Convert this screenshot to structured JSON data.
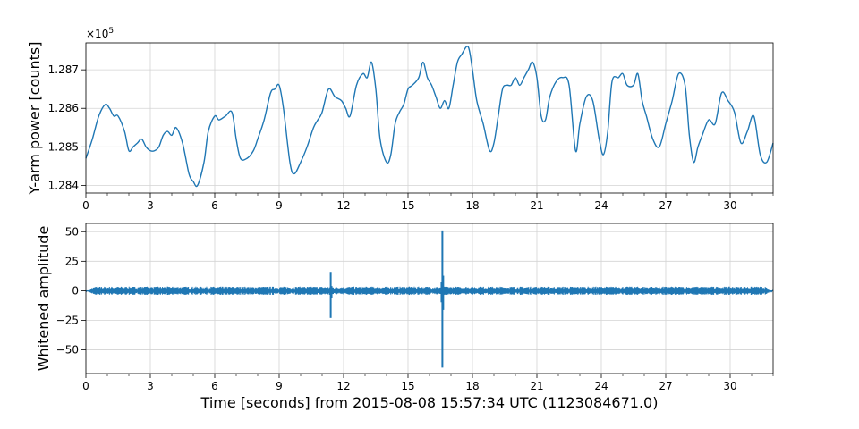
{
  "chart_data": [
    {
      "type": "line",
      "xlabel": "",
      "ylabel": "Y-arm power [counts]",
      "offset_text": "×10",
      "offset_exp": "5",
      "xlim": [
        0,
        32
      ],
      "ylim": [
        1.2838,
        1.2877
      ],
      "grid": true,
      "x_ticks": [
        0,
        3,
        6,
        9,
        12,
        15,
        18,
        21,
        24,
        27,
        30
      ],
      "x_tick_labels": [
        "0",
        "3",
        "6",
        "9",
        "12",
        "15",
        "18",
        "21",
        "24",
        "27",
        "30"
      ],
      "y_ticks": [
        1.284,
        1.285,
        1.286,
        1.287
      ],
      "y_tick_labels": [
        "1.284",
        "1.285",
        "1.286",
        "1.287"
      ],
      "color": "#1f77b4",
      "series": [
        {
          "x": [
            0,
            0.3,
            0.6,
            0.9,
            1.1,
            1.3,
            1.5,
            1.8,
            2.0,
            2.2,
            2.4,
            2.6,
            2.8,
            3.0,
            3.2,
            3.4,
            3.6,
            3.8,
            4.0,
            4.2,
            4.5,
            4.8,
            5.0,
            5.2,
            5.5,
            5.7,
            6.0,
            6.2,
            6.5,
            6.8,
            7.0,
            7.2,
            7.5,
            7.8,
            8.0,
            8.3,
            8.6,
            8.8,
            9.0,
            9.2,
            9.5,
            9.7,
            10.0,
            10.3,
            10.6,
            10.8,
            11.0,
            11.3,
            11.6,
            11.9,
            12.1,
            12.3,
            12.6,
            12.9,
            13.1,
            13.3,
            13.5,
            13.7,
            14.0,
            14.2,
            14.4,
            14.6,
            14.8,
            15.0,
            15.2,
            15.5,
            15.7,
            15.9,
            16.1,
            16.3,
            16.5,
            16.7,
            16.9,
            17.1,
            17.3,
            17.5,
            17.8,
            18.0,
            18.2,
            18.5,
            18.8,
            19.0,
            19.2,
            19.4,
            19.6,
            19.8,
            20.0,
            20.2,
            20.4,
            20.6,
            20.8,
            21.0,
            21.2,
            21.4,
            21.6,
            21.9,
            22.2,
            22.5,
            22.8,
            23.0,
            23.3,
            23.6,
            23.9,
            24.1,
            24.3,
            24.5,
            24.8,
            25.0,
            25.2,
            25.5,
            25.7,
            25.9,
            26.1,
            26.4,
            26.7,
            27.0,
            27.3,
            27.6,
            27.9,
            28.1,
            28.3,
            28.5,
            28.7,
            29.0,
            29.3,
            29.6,
            29.9,
            30.2,
            30.5,
            30.8,
            31.1,
            31.4,
            31.7,
            32.0
          ],
          "values": [
            1.2847,
            1.2852,
            1.2858,
            1.2861,
            1.286,
            1.2858,
            1.2858,
            1.2854,
            1.2849,
            1.285,
            1.2851,
            1.2852,
            1.285,
            1.2849,
            1.2849,
            1.285,
            1.2853,
            1.2854,
            1.2853,
            1.2855,
            1.2851,
            1.2843,
            1.2841,
            1.284,
            1.2846,
            1.2854,
            1.2858,
            1.2857,
            1.2858,
            1.2859,
            1.2852,
            1.2847,
            1.2847,
            1.2849,
            1.2852,
            1.2857,
            1.2864,
            1.2865,
            1.2866,
            1.286,
            1.2846,
            1.2843,
            1.2846,
            1.285,
            1.2855,
            1.2857,
            1.2859,
            1.2865,
            1.2863,
            1.2862,
            1.286,
            1.2858,
            1.2866,
            1.2869,
            1.2868,
            1.2872,
            1.2865,
            1.2852,
            1.2846,
            1.2848,
            1.2856,
            1.2859,
            1.2861,
            1.2865,
            1.2866,
            1.2868,
            1.2872,
            1.2868,
            1.2866,
            1.2863,
            1.286,
            1.2862,
            1.286,
            1.2866,
            1.2872,
            1.2874,
            1.2876,
            1.287,
            1.2862,
            1.2856,
            1.2849,
            1.2851,
            1.2858,
            1.2865,
            1.2866,
            1.2866,
            1.2868,
            1.2866,
            1.2868,
            1.287,
            1.2872,
            1.2868,
            1.2858,
            1.2857,
            1.2863,
            1.2867,
            1.2868,
            1.2866,
            1.2849,
            1.2856,
            1.2863,
            1.2862,
            1.2852,
            1.2848,
            1.2854,
            1.2867,
            1.2868,
            1.2869,
            1.2866,
            1.2866,
            1.2869,
            1.2862,
            1.2858,
            1.2852,
            1.285,
            1.2856,
            1.2862,
            1.2869,
            1.2866,
            1.2853,
            1.2846,
            1.285,
            1.2853,
            1.2857,
            1.2856,
            1.2864,
            1.2862,
            1.2859,
            1.2851,
            1.2854,
            1.2858,
            1.2848,
            1.2846,
            1.2851
          ]
        }
      ]
    },
    {
      "type": "line",
      "xlabel": "Time [seconds] from 2015-08-08 15:57:34 UTC (1123084671.0)",
      "ylabel": "Whitened amplitude",
      "xlim": [
        0,
        32
      ],
      "ylim": [
        -70,
        57
      ],
      "grid": true,
      "x_ticks": [
        0,
        3,
        6,
        9,
        12,
        15,
        18,
        21,
        24,
        27,
        30
      ],
      "x_tick_labels": [
        "0",
        "3",
        "6",
        "9",
        "12",
        "15",
        "18",
        "21",
        "24",
        "27",
        "30"
      ],
      "y_ticks": [
        -50,
        -25,
        0,
        25,
        50
      ],
      "y_tick_labels": [
        "−50",
        "−25",
        "0",
        "25",
        "50"
      ],
      "color": "#1f77b4",
      "noise_amplitude": 2.5,
      "spikes": [
        {
          "x": 11.4,
          "max": 16,
          "min": -23
        },
        {
          "x": 16.6,
          "max": 51,
          "min": -65
        }
      ]
    }
  ]
}
